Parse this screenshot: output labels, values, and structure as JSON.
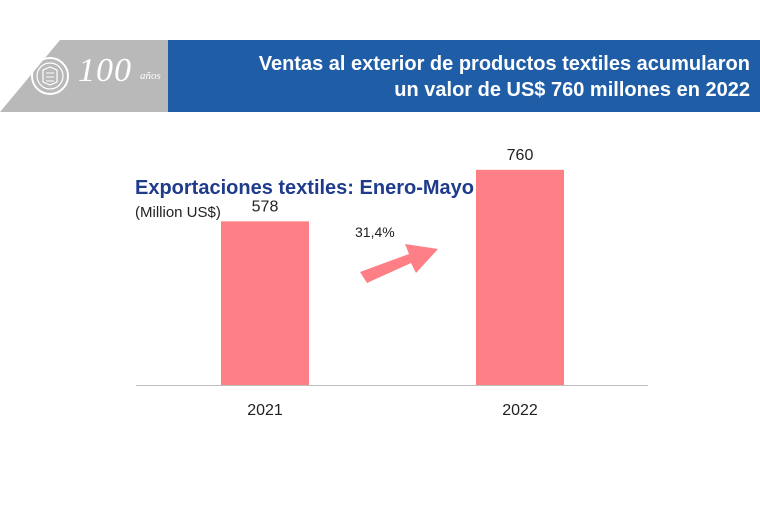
{
  "header": {
    "logo_number": "100",
    "logo_years": "años",
    "headline_line1": "Ventas al exterior de productos textiles acumularon",
    "headline_line2": "un valor de US$ 760 millones en 2022"
  },
  "colors": {
    "banner_blue": "#1f5ea7",
    "banner_gray": "#b9b9b9",
    "bar": "#ff7f86",
    "title": "#1f3b8c"
  },
  "chart_data": {
    "type": "bar",
    "title": "Exportaciones textiles: Enero-Mayo",
    "subtitle": "(Million US$)",
    "categories": [
      "2021",
      "2022"
    ],
    "values": [
      578,
      760
    ],
    "value_labels": [
      "578",
      "760"
    ],
    "ylim": [
      0,
      830
    ],
    "grid": false,
    "annotation": {
      "label": "31,4%",
      "icon": "arrow-up-right-icon"
    }
  }
}
